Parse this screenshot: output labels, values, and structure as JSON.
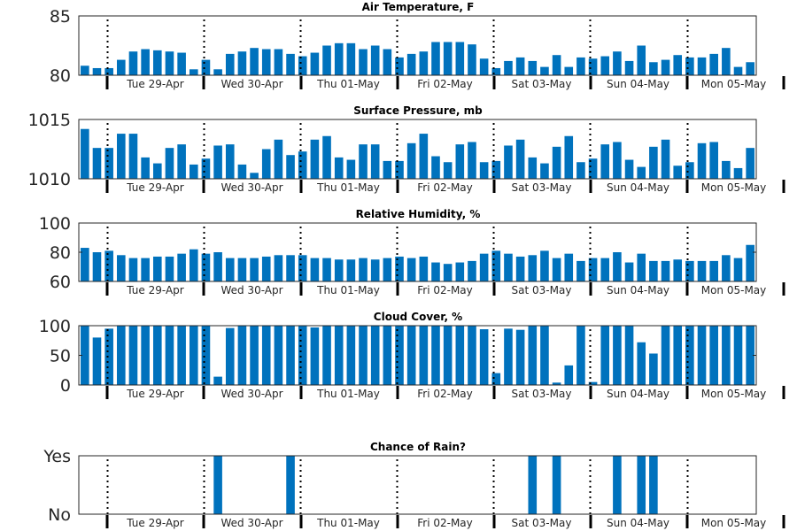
{
  "chart_data": [
    {
      "type": "bar",
      "title": "Air Temperature, F",
      "ylim": [
        80,
        85
      ],
      "yticks": [
        80,
        85
      ],
      "ytick_labels": [
        "80",
        "85"
      ],
      "values": [
        80.8,
        80.6,
        80.6,
        81.3,
        82.0,
        82.2,
        82.1,
        82.0,
        81.9,
        80.5,
        81.3,
        80.5,
        81.8,
        82.0,
        82.3,
        82.2,
        82.2,
        81.8,
        81.6,
        81.9,
        82.5,
        82.7,
        82.7,
        82.2,
        82.5,
        82.2,
        81.5,
        81.8,
        82.0,
        82.8,
        82.8,
        82.8,
        82.6,
        81.4,
        80.6,
        81.2,
        81.5,
        81.2,
        80.7,
        81.7,
        80.7,
        81.5,
        81.4,
        81.6,
        82.0,
        81.2,
        82.5,
        81.1,
        81.3,
        81.7,
        81.5,
        81.5,
        81.8,
        82.3,
        80.7,
        81.1
      ]
    },
    {
      "type": "bar",
      "title": "Surface Pressure, mb",
      "ylim": [
        1010,
        1015
      ],
      "yticks": [
        1010,
        1015
      ],
      "ytick_labels": [
        "1010",
        "1015"
      ],
      "values": [
        1014.2,
        1012.6,
        1012.6,
        1013.8,
        1013.8,
        1011.8,
        1011.3,
        1012.6,
        1012.9,
        1011.2,
        1011.7,
        1012.8,
        1012.9,
        1011.2,
        1010.5,
        1012.5,
        1013.3,
        1012.0,
        1012.3,
        1013.3,
        1013.6,
        1011.8,
        1011.6,
        1012.9,
        1012.9,
        1011.5,
        1011.5,
        1013.0,
        1013.8,
        1011.9,
        1011.4,
        1012.9,
        1013.1,
        1011.4,
        1011.5,
        1012.8,
        1013.3,
        1011.8,
        1011.3,
        1012.7,
        1013.6,
        1011.4,
        1011.7,
        1012.9,
        1013.1,
        1011.6,
        1011.0,
        1012.7,
        1013.3,
        1011.1,
        1011.4,
        1013.0,
        1013.1,
        1011.5,
        1010.9,
        1012.6
      ]
    },
    {
      "type": "bar",
      "title": "Relative Humidity, %",
      "ylim": [
        60,
        100
      ],
      "yticks": [
        60,
        80,
        100
      ],
      "ytick_labels": [
        "60",
        "80",
        "100"
      ],
      "values": [
        83,
        80,
        81,
        78,
        76,
        76,
        77,
        77,
        79,
        82,
        79,
        80,
        76,
        76,
        76,
        77,
        78,
        78,
        78,
        76,
        76,
        75,
        75,
        76,
        75,
        76,
        77,
        76,
        77,
        73,
        72,
        73,
        74,
        79,
        81,
        79,
        77,
        78,
        81,
        76,
        79,
        74,
        76,
        76,
        80,
        73,
        79,
        74,
        74,
        75,
        74,
        74,
        74,
        78,
        76,
        85
      ]
    },
    {
      "type": "bar",
      "title": "Cloud Cover, %",
      "ylim": [
        0,
        100
      ],
      "yticks": [
        0,
        50,
        100
      ],
      "ytick_labels": [
        "0",
        "50",
        "100"
      ],
      "values": [
        100,
        80,
        95,
        100,
        100,
        100,
        100,
        100,
        100,
        100,
        100,
        14,
        96,
        100,
        100,
        100,
        100,
        100,
        100,
        97,
        100,
        100,
        100,
        100,
        100,
        100,
        100,
        100,
        100,
        100,
        100,
        100,
        100,
        94,
        20,
        95,
        93,
        100,
        100,
        4,
        33,
        100,
        5,
        100,
        100,
        100,
        72,
        53,
        100,
        100,
        100,
        100,
        100,
        100,
        100,
        100
      ]
    },
    {
      "type": "bar",
      "title": "Chance of Rain?",
      "ylim": [
        0,
        1
      ],
      "yticks": [
        0,
        1
      ],
      "ytick_labels": [
        "No",
        "Yes"
      ],
      "values": [
        0,
        0,
        0,
        0,
        0,
        0,
        0,
        0,
        0,
        0,
        0,
        1,
        0,
        0,
        0,
        0,
        0,
        1,
        0,
        0,
        0,
        0,
        0,
        0,
        0,
        0,
        0,
        0,
        0,
        0,
        0,
        0,
        0,
        0,
        0,
        0,
        0,
        1,
        0,
        1,
        0,
        0,
        0,
        0,
        1,
        0,
        1,
        1,
        0,
        0,
        0,
        0,
        0,
        0,
        0,
        0
      ]
    }
  ],
  "day_labels": [
    "Tue 29-Apr",
    "Wed 30-Apr",
    "Thu 01-May",
    "Fri 02-May",
    "Sat 03-May",
    "Sun 04-May",
    "Mon 05-May"
  ],
  "colors": {
    "bar": "#0072bd",
    "axis": "#262626",
    "separator": "#000000"
  }
}
